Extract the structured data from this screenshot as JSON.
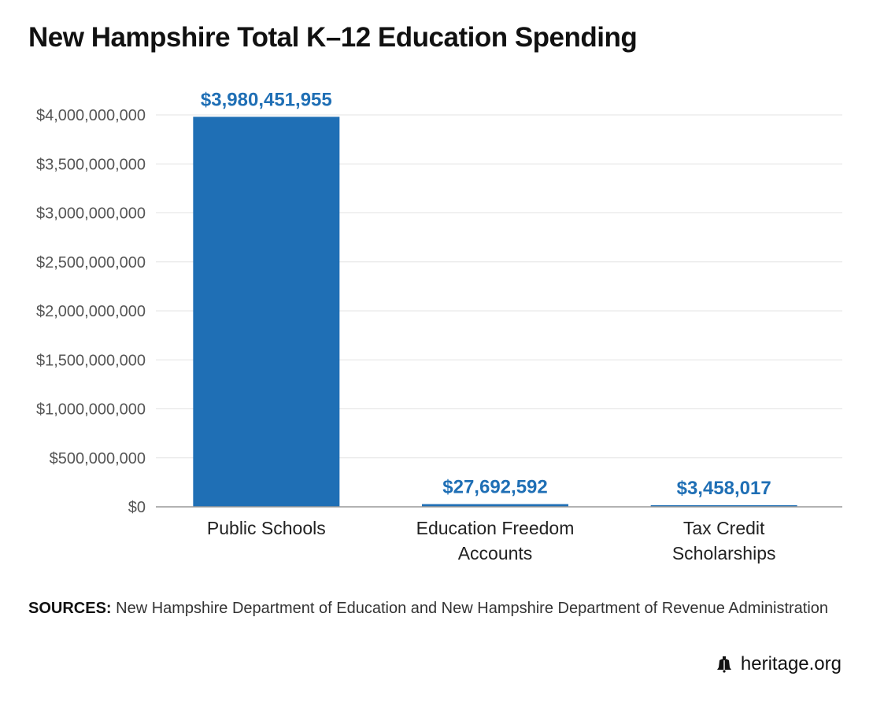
{
  "title": "New Hampshire Total K–12 Education Spending",
  "source": {
    "label": "SOURCES:",
    "text": "New Hampshire Department of Education and New Hampshire Department of Revenue Administration"
  },
  "brand": {
    "text": "heritage.org",
    "icon": "liberty-bell-icon"
  },
  "colors": {
    "bar": "#1f6fb5",
    "data_label": "#1f6fb5",
    "grid": "#e3e3e3",
    "axis": "#999999",
    "tick_text": "#555555",
    "category_text": "#222222"
  },
  "chart_data": {
    "type": "bar",
    "title": "New Hampshire Total K–12 Education Spending",
    "categories": [
      [
        "Public Schools"
      ],
      [
        "Education Freedom",
        "Accounts"
      ],
      [
        "Tax Credit",
        "Scholarships"
      ]
    ],
    "values": [
      3980451955,
      27692592,
      3458017
    ],
    "data_labels": [
      "$3,980,451,955",
      "$27,692,592",
      "$3,458,017"
    ],
    "ylim": [
      0,
      4000000000
    ],
    "y_ticks": [
      0,
      500000000,
      1000000000,
      1500000000,
      2000000000,
      2500000000,
      3000000000,
      3500000000,
      4000000000
    ],
    "y_tick_labels": [
      "$0",
      "$500,000,000",
      "$1,000,000,000",
      "$1,500,000,000",
      "$2,000,000,000",
      "$2,500,000,000",
      "$3,000,000,000",
      "$3,500,000,000",
      "$4,000,000,000"
    ],
    "xlabel": "",
    "ylabel": "",
    "grid": true,
    "legend": "none"
  }
}
